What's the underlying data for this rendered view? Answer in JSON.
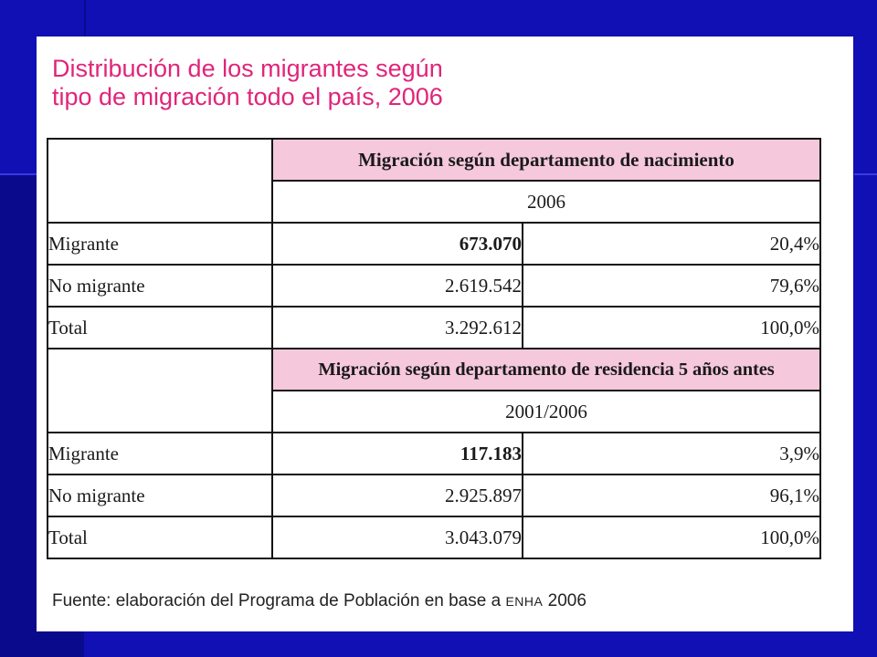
{
  "title": {
    "line1": "Distribución de los migrantes según",
    "line2": "tipo de migración todo el país, 2006"
  },
  "table": {
    "section1": {
      "header": "Migración según departamento de nacimiento",
      "period": "2006",
      "rows": [
        {
          "label": "Migrante",
          "value": "673.070",
          "pct": "20,4%"
        },
        {
          "label": "No migrante",
          "value": "2.619.542",
          "pct": "79,6%"
        },
        {
          "label": "Total",
          "value": "3.292.612",
          "pct": "100,0%"
        }
      ]
    },
    "section2": {
      "header": "Migración según departamento de residencia 5 años antes",
      "period": "2001/2006",
      "rows": [
        {
          "label": "Migrante",
          "value": "117.183",
          "pct": "3,9%"
        },
        {
          "label": "No migrante",
          "value": "2.925.897",
          "pct": "96,1%"
        },
        {
          "label": "Total",
          "value": "3.043.079",
          "pct": "100,0%"
        }
      ]
    }
  },
  "footer": {
    "text": "Fuente: elaboración del Programa de Población en base a",
    "source": "ENHA",
    "year": "2006"
  },
  "colors": {
    "title": "#e0257a",
    "header_bg": "#f6c8dc",
    "slide_bg": "#1010b4"
  }
}
